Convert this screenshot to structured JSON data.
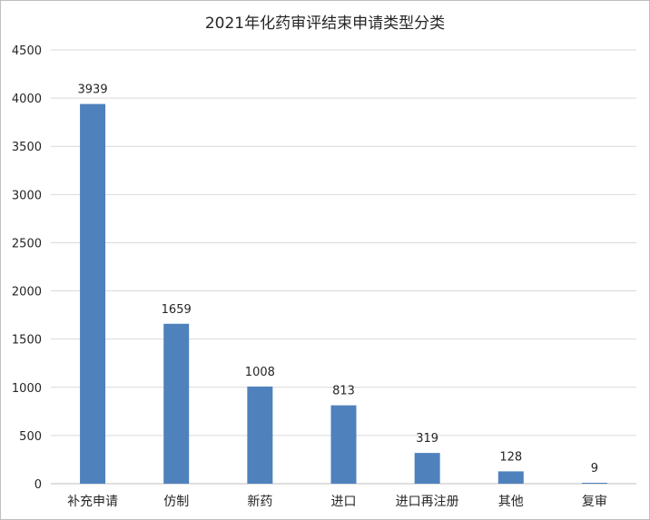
{
  "chart_data": {
    "type": "bar",
    "title": "2021年化药审评结束申请类型分类",
    "categories": [
      "补充申请",
      "仿制",
      "新药",
      "进口",
      "进口再注册",
      "其他",
      "复审"
    ],
    "values": [
      3939,
      1659,
      1008,
      813,
      319,
      128,
      9
    ],
    "ylim": [
      0,
      4500
    ],
    "yticks": [
      0,
      500,
      1000,
      1500,
      2000,
      2500,
      3000,
      3500,
      4000,
      4500
    ],
    "grid": true,
    "legend": "none",
    "bar_color": "#4f81bd",
    "grid_color": "#d9d9d9",
    "axis_color": "#bfbfbf"
  }
}
